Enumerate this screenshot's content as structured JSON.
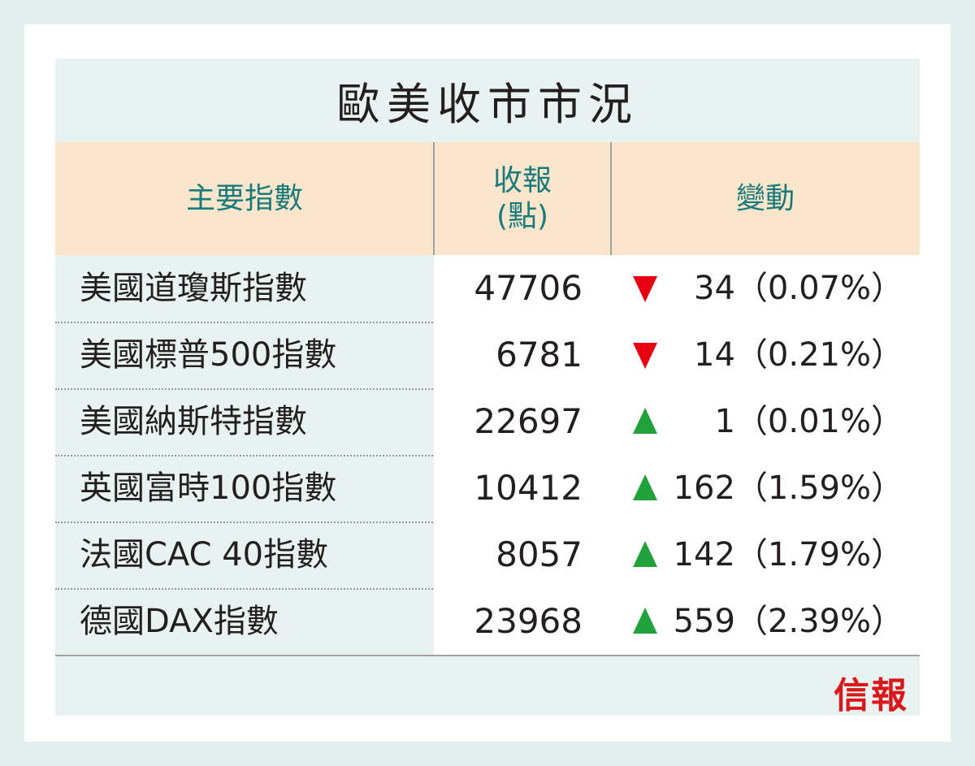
{
  "title": "歐美收市市況",
  "header": {
    "index_label": "主要指數",
    "close_label_1": "收報",
    "close_label_2": "(點)",
    "change_label": "變動"
  },
  "colors": {
    "down": "#e60012",
    "up": "#21a13a",
    "header_text": "#197a7c",
    "header_bg": "#fbe6cc"
  },
  "rows": [
    {
      "name": "美國道瓊斯指數",
      "close": "47706",
      "direction": "down",
      "change": "34（0.07%）"
    },
    {
      "name": "美國標普500指數",
      "close": "6781",
      "direction": "down",
      "change": "14（0.21%）"
    },
    {
      "name": "美國納斯特指數",
      "close": "22697",
      "direction": "up",
      "change": "1（0.01%）"
    },
    {
      "name": "英國富時100指數",
      "close": "10412",
      "direction": "up",
      "change": "162（1.59%）"
    },
    {
      "name": "法國CAC 40指數",
      "close": "8057",
      "direction": "up",
      "change": "142（1.79%）"
    },
    {
      "name": "德國DAX指數",
      "close": "23968",
      "direction": "up",
      "change": "559（2.39%）"
    }
  ],
  "logo": "信報"
}
